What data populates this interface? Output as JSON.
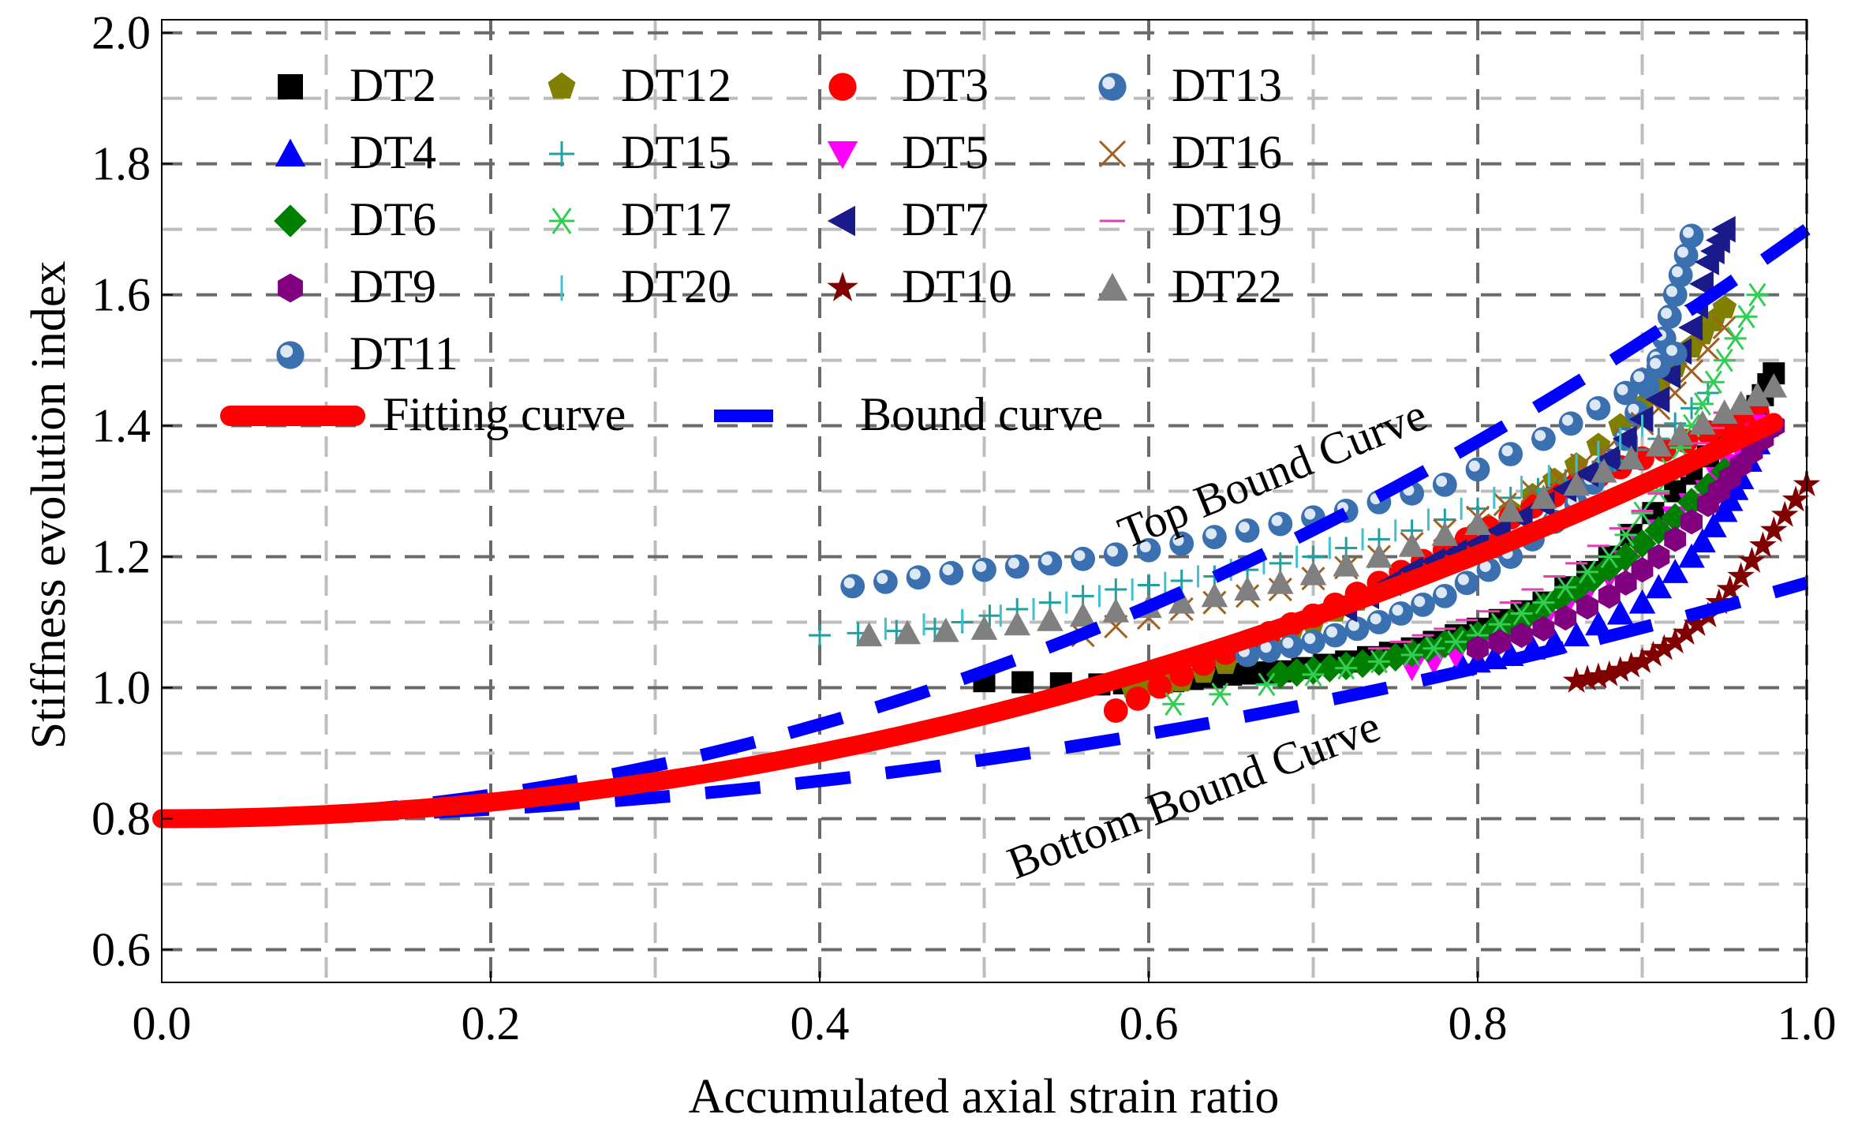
{
  "chart_data": {
    "type": "scatter",
    "title": "",
    "xlabel": "Accumulated axial strain ratio",
    "ylabel": "Stiffness evolution index",
    "xlim": [
      0.0,
      1.0
    ],
    "ylim": [
      0.55,
      2.02
    ],
    "xticks": [
      "0.0",
      "0.2",
      "0.4",
      "0.6",
      "0.8",
      "1.0"
    ],
    "yticks": [
      "0.6",
      "0.8",
      "1.0",
      "1.2",
      "1.4",
      "1.6",
      "1.8",
      "2.0"
    ],
    "grid": true,
    "legend_position": "top-left",
    "series": [
      {
        "name": "DT2",
        "marker": "square",
        "color": "#000000",
        "points": [
          [
            0.5,
            1.01
          ],
          [
            0.57,
            1.005
          ],
          [
            0.615,
            1.01
          ],
          [
            0.65,
            1.02
          ],
          [
            0.68,
            1.025
          ],
          [
            0.72,
            1.04
          ],
          [
            0.76,
            1.06
          ],
          [
            0.8,
            1.09
          ],
          [
            0.84,
            1.13
          ],
          [
            0.88,
            1.2
          ],
          [
            0.92,
            1.3
          ],
          [
            0.95,
            1.38
          ],
          [
            0.97,
            1.43
          ],
          [
            0.98,
            1.48
          ]
        ]
      },
      {
        "name": "DT12",
        "marker": "pentagon",
        "color": "#808000",
        "points": [
          [
            0.59,
            1.0
          ],
          [
            0.62,
            1.01
          ],
          [
            0.66,
            1.05
          ],
          [
            0.7,
            1.1
          ],
          [
            0.74,
            1.15
          ],
          [
            0.78,
            1.2
          ],
          [
            0.82,
            1.27
          ],
          [
            0.86,
            1.34
          ],
          [
            0.9,
            1.43
          ],
          [
            0.93,
            1.52
          ],
          [
            0.95,
            1.58
          ]
        ]
      },
      {
        "name": "DT3",
        "marker": "circle",
        "color": "#ff0000",
        "points": [
          [
            0.58,
            0.965
          ],
          [
            0.62,
            1.02
          ],
          [
            0.66,
            1.07
          ],
          [
            0.7,
            1.11
          ],
          [
            0.74,
            1.16
          ],
          [
            0.78,
            1.21
          ],
          [
            0.82,
            1.26
          ],
          [
            0.86,
            1.31
          ],
          [
            0.9,
            1.35
          ],
          [
            0.94,
            1.39
          ],
          [
            0.97,
            1.42
          ]
        ]
      },
      {
        "name": "DT13",
        "marker": "shaded-circle",
        "color": "#3a6fb0",
        "points": [
          [
            0.66,
            1.05
          ],
          [
            0.7,
            1.07
          ],
          [
            0.74,
            1.1
          ],
          [
            0.78,
            1.14
          ],
          [
            0.82,
            1.2
          ],
          [
            0.86,
            1.28
          ],
          [
            0.89,
            1.38
          ],
          [
            0.91,
            1.5
          ],
          [
            0.92,
            1.6
          ],
          [
            0.93,
            1.69
          ]
        ]
      },
      {
        "name": "DT4",
        "marker": "triangle-up",
        "color": "#0000ff",
        "points": [
          [
            0.79,
            1.035
          ],
          [
            0.82,
            1.05
          ],
          [
            0.86,
            1.08
          ],
          [
            0.9,
            1.13
          ],
          [
            0.93,
            1.2
          ],
          [
            0.95,
            1.27
          ],
          [
            0.96,
            1.32
          ],
          [
            0.975,
            1.4
          ]
        ]
      },
      {
        "name": "DT15",
        "marker": "plus",
        "color": "#20a0a0",
        "points": [
          [
            0.4,
            1.08
          ],
          [
            0.47,
            1.09
          ],
          [
            0.52,
            1.12
          ],
          [
            0.58,
            1.15
          ],
          [
            0.64,
            1.17
          ],
          [
            0.7,
            1.2
          ],
          [
            0.76,
            1.24
          ],
          [
            0.82,
            1.29
          ],
          [
            0.87,
            1.33
          ],
          [
            0.91,
            1.38
          ],
          [
            0.94,
            1.45
          ]
        ]
      },
      {
        "name": "DT5",
        "marker": "triangle-down",
        "color": "#ff00ff",
        "points": [
          [
            0.76,
            1.03
          ],
          [
            0.8,
            1.06
          ],
          [
            0.84,
            1.1
          ],
          [
            0.88,
            1.17
          ],
          [
            0.91,
            1.24
          ],
          [
            0.94,
            1.3
          ],
          [
            0.96,
            1.36
          ],
          [
            0.975,
            1.4
          ]
        ]
      },
      {
        "name": "DT16",
        "marker": "cross",
        "color": "#a06020",
        "points": [
          [
            0.56,
            1.08
          ],
          [
            0.62,
            1.12
          ],
          [
            0.68,
            1.15
          ],
          [
            0.74,
            1.2
          ],
          [
            0.8,
            1.26
          ],
          [
            0.85,
            1.32
          ],
          [
            0.89,
            1.38
          ],
          [
            0.92,
            1.45
          ],
          [
            0.95,
            1.55
          ]
        ]
      },
      {
        "name": "DT6",
        "marker": "diamond",
        "color": "#008000",
        "points": [
          [
            0.68,
            1.02
          ],
          [
            0.71,
            1.03
          ],
          [
            0.74,
            1.04
          ],
          [
            0.77,
            1.06
          ],
          [
            0.8,
            1.08
          ],
          [
            0.83,
            1.11
          ],
          [
            0.86,
            1.15
          ],
          [
            0.89,
            1.2
          ],
          [
            0.92,
            1.26
          ],
          [
            0.95,
            1.33
          ]
        ]
      },
      {
        "name": "DT17",
        "marker": "asterisk",
        "color": "#33cc55",
        "points": [
          [
            0.615,
            0.975
          ],
          [
            0.7,
            1.02
          ],
          [
            0.76,
            1.05
          ],
          [
            0.8,
            1.08
          ],
          [
            0.84,
            1.13
          ],
          [
            0.88,
            1.2
          ],
          [
            0.91,
            1.3
          ],
          [
            0.93,
            1.4
          ],
          [
            0.95,
            1.5
          ],
          [
            0.97,
            1.6
          ]
        ]
      },
      {
        "name": "DT7",
        "marker": "triangle-left",
        "color": "#1a1a8a",
        "points": [
          [
            0.72,
            1.12
          ],
          [
            0.76,
            1.18
          ],
          [
            0.8,
            1.22
          ],
          [
            0.84,
            1.28
          ],
          [
            0.88,
            1.35
          ],
          [
            0.91,
            1.44
          ],
          [
            0.93,
            1.55
          ],
          [
            0.94,
            1.65
          ],
          [
            0.95,
            1.7
          ]
        ]
      },
      {
        "name": "DT19",
        "marker": "dash",
        "color": "#e040b0",
        "points": [
          [
            0.74,
            1.06
          ],
          [
            0.78,
            1.09
          ],
          [
            0.82,
            1.13
          ],
          [
            0.86,
            1.19
          ],
          [
            0.9,
            1.27
          ],
          [
            0.93,
            1.35
          ],
          [
            0.95,
            1.42
          ]
        ]
      },
      {
        "name": "DT9",
        "marker": "hexagon",
        "color": "#800080",
        "points": [
          [
            0.8,
            1.06
          ],
          [
            0.84,
            1.09
          ],
          [
            0.88,
            1.14
          ],
          [
            0.91,
            1.2
          ],
          [
            0.94,
            1.28
          ],
          [
            0.96,
            1.34
          ],
          [
            0.98,
            1.4
          ]
        ]
      },
      {
        "name": "DT20",
        "marker": "vline",
        "color": "#40c0d0",
        "points": [
          [
            0.44,
            1.09
          ],
          [
            0.51,
            1.11
          ],
          [
            0.57,
            1.14
          ],
          [
            0.63,
            1.17
          ],
          [
            0.69,
            1.2
          ],
          [
            0.75,
            1.24
          ],
          [
            0.81,
            1.29
          ],
          [
            0.86,
            1.34
          ],
          [
            0.9,
            1.4
          ]
        ]
      },
      {
        "name": "DT10",
        "marker": "star",
        "color": "#800000",
        "points": [
          [
            0.86,
            1.01
          ],
          [
            0.88,
            1.02
          ],
          [
            0.9,
            1.04
          ],
          [
            0.92,
            1.07
          ],
          [
            0.94,
            1.11
          ],
          [
            0.96,
            1.17
          ],
          [
            0.98,
            1.24
          ],
          [
            1.0,
            1.31
          ]
        ]
      },
      {
        "name": "DT22",
        "marker": "triangle-up",
        "color": "#808080",
        "points": [
          [
            0.43,
            1.08
          ],
          [
            0.5,
            1.09
          ],
          [
            0.56,
            1.11
          ],
          [
            0.62,
            1.13
          ],
          [
            0.68,
            1.16
          ],
          [
            0.74,
            1.2
          ],
          [
            0.8,
            1.25
          ],
          [
            0.86,
            1.31
          ],
          [
            0.91,
            1.37
          ],
          [
            0.95,
            1.42
          ],
          [
            0.98,
            1.46
          ]
        ]
      },
      {
        "name": "DT11",
        "marker": "shaded-circle",
        "color": "#3a6fb0",
        "points": [
          [
            0.42,
            1.155
          ],
          [
            0.48,
            1.175
          ],
          [
            0.54,
            1.19
          ],
          [
            0.6,
            1.21
          ],
          [
            0.66,
            1.24
          ],
          [
            0.72,
            1.27
          ],
          [
            0.78,
            1.31
          ],
          [
            0.84,
            1.38
          ],
          [
            0.89,
            1.45
          ],
          [
            0.92,
            1.51
          ]
        ]
      }
    ],
    "lines": [
      {
        "name": "Fitting curve",
        "style": "solid",
        "color": "#ff0000"
      },
      {
        "name": "Bound curve",
        "style": "dashed",
        "color": "#0000ff"
      }
    ],
    "annotations": [
      "Top Bound Curve",
      "Bottom Bound Curve"
    ]
  }
}
